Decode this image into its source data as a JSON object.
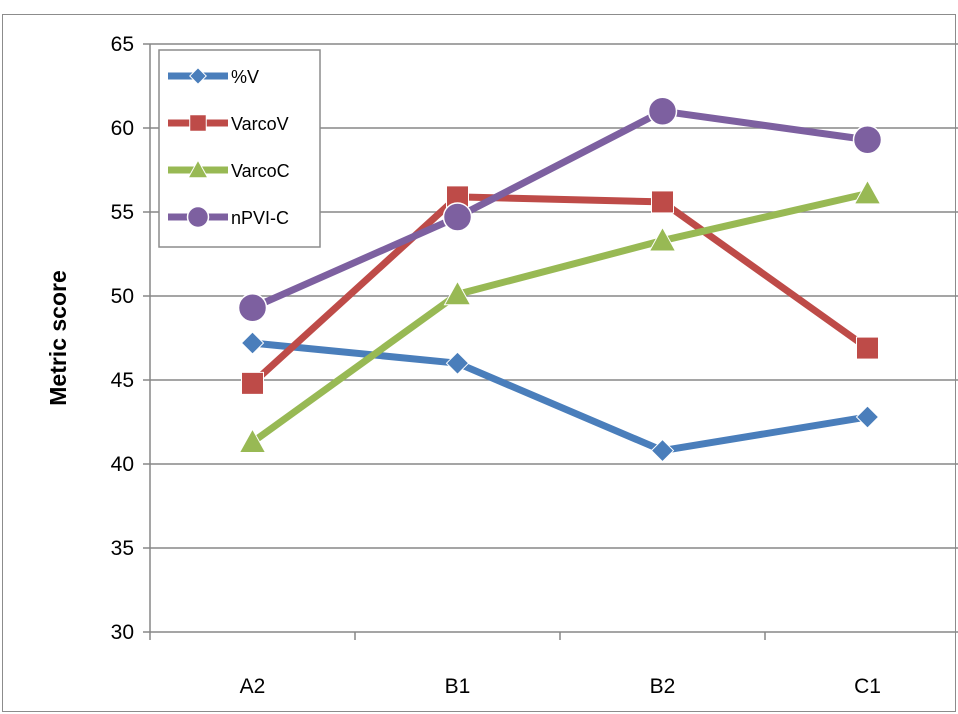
{
  "chart_data": {
    "type": "line",
    "title": "",
    "xlabel": "",
    "ylabel": "Metric score",
    "categories": [
      "A2",
      "B1",
      "B2",
      "C1"
    ],
    "ylim": [
      30,
      65
    ],
    "yticks": [
      30,
      35,
      40,
      45,
      50,
      55,
      60,
      65
    ],
    "grid": true,
    "legend_position": "top-left",
    "series": [
      {
        "name": "%V",
        "color": "#4a7ebb",
        "marker": "diamond",
        "values": [
          47.2,
          46.0,
          40.8,
          42.8
        ]
      },
      {
        "name": "VarcoV",
        "color": "#be4b48",
        "marker": "square",
        "values": [
          44.8,
          55.9,
          55.6,
          46.9
        ]
      },
      {
        "name": "VarcoC",
        "color": "#98b954",
        "marker": "triangle",
        "values": [
          41.3,
          50.1,
          53.3,
          56.1
        ]
      },
      {
        "name": "nPVI-C",
        "color": "#7d60a0",
        "marker": "circle",
        "values": [
          49.3,
          54.7,
          61.0,
          59.3
        ]
      }
    ]
  }
}
